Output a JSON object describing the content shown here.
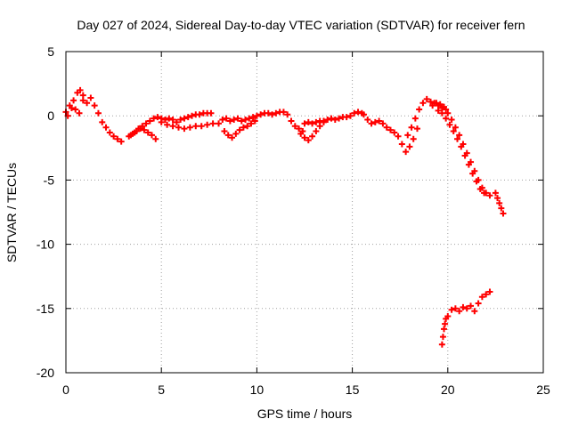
{
  "chart_data": {
    "type": "scatter",
    "title": "Day 027 of 2024, Sidereal Day-to-day VTEC variation (SDTVAR) for receiver fern",
    "xlabel": "GPS time / hours",
    "ylabel": "SDTVAR / TECUs",
    "xlim": [
      0,
      25
    ],
    "ylim": [
      -20,
      5
    ],
    "xticks": [
      0,
      5,
      10,
      15,
      20,
      25
    ],
    "xtick_labels": [
      "0",
      "5",
      "10",
      "15",
      "20",
      "25"
    ],
    "yticks": [
      5,
      0,
      -5,
      -10,
      -15,
      -20
    ],
    "ytick_labels": [
      "5",
      "0",
      "-5",
      "-10",
      "-15",
      "-20"
    ],
    "grid": true,
    "marker": "plus",
    "series": [
      {
        "name": "SDTVAR",
        "color": "#ff0000",
        "segments": [
          {
            "x": [
              0.0,
              0.2,
              0.4,
              0.6,
              0.75,
              0.9,
              1.1,
              1.3,
              1.5,
              1.7,
              1.9,
              2.1,
              2.3,
              2.5,
              2.7,
              2.9
            ],
            "y": [
              0.3,
              0.8,
              1.2,
              1.8,
              2.0,
              1.6,
              1.0,
              1.4,
              0.8,
              0.2,
              -0.5,
              -0.9,
              -1.3,
              -1.6,
              -1.8,
              -2.0
            ]
          },
          {
            "x": [
              0.1,
              0.3,
              0.5,
              0.7,
              0.9
            ],
            "y": [
              0.0,
              0.6,
              0.5,
              0.2,
              1.2
            ]
          },
          {
            "x": [
              3.3,
              3.5,
              3.7,
              3.9,
              4.1,
              4.3,
              4.5,
              4.7
            ],
            "y": [
              -1.6,
              -1.4,
              -1.2,
              -1.0,
              -1.1,
              -1.3,
              -1.5,
              -1.8
            ]
          },
          {
            "x": [
              3.4,
              3.6,
              3.8,
              4.0,
              4.2,
              4.4,
              4.6,
              4.8,
              5.0,
              5.2,
              5.4,
              5.6,
              5.8,
              6.0,
              6.2,
              6.4,
              6.6,
              6.8,
              7.0,
              7.2,
              7.4,
              7.6
            ],
            "y": [
              -1.5,
              -1.3,
              -1.0,
              -0.8,
              -0.6,
              -0.4,
              -0.2,
              -0.1,
              -0.2,
              -0.3,
              -0.2,
              -0.3,
              -0.5,
              -0.3,
              -0.2,
              -0.1,
              0.0,
              0.1,
              0.1,
              0.2,
              0.2,
              0.2
            ]
          },
          {
            "x": [
              5.0,
              5.3,
              5.6,
              5.9,
              6.2,
              6.5,
              6.8,
              7.1,
              7.4,
              7.7,
              8.0
            ],
            "y": [
              -0.5,
              -0.7,
              -0.8,
              -0.9,
              -1.0,
              -0.9,
              -0.8,
              -0.8,
              -0.7,
              -0.6,
              -0.6
            ]
          },
          {
            "x": [
              8.2,
              8.4,
              8.6,
              8.8,
              9.0,
              9.2,
              9.4,
              9.6,
              9.8,
              10.0
            ],
            "y": [
              -0.3,
              -0.2,
              -0.4,
              -0.3,
              -0.2,
              -0.4,
              -0.3,
              -0.2,
              -0.1,
              0.0
            ]
          },
          {
            "x": [
              8.3,
              8.5,
              8.7,
              8.9,
              9.1,
              9.3,
              9.5,
              9.7,
              9.9
            ],
            "y": [
              -1.2,
              -1.5,
              -1.7,
              -1.4,
              -1.1,
              -0.9,
              -0.8,
              -0.6,
              -0.4
            ]
          },
          {
            "x": [
              10.2,
              10.4,
              10.6,
              10.8,
              11.0,
              11.2,
              11.4,
              11.6,
              11.8,
              12.0,
              12.2,
              12.4
            ],
            "y": [
              0.1,
              0.2,
              0.2,
              0.1,
              0.2,
              0.3,
              0.3,
              0.1,
              -0.4,
              -0.8,
              -1.0,
              -1.2
            ]
          },
          {
            "x": [
              12.3,
              12.5,
              12.7,
              12.9,
              13.1,
              13.3,
              13.5
            ],
            "y": [
              -1.4,
              -1.7,
              -1.9,
              -1.6,
              -1.2,
              -0.8,
              -0.5
            ]
          },
          {
            "x": [
              12.5,
              12.7,
              12.9,
              13.1,
              13.3,
              13.5,
              13.7,
              13.9,
              14.1,
              14.3,
              14.5,
              14.7,
              14.9,
              15.1,
              15.3,
              15.5
            ],
            "y": [
              -0.6,
              -0.5,
              -0.6,
              -0.5,
              -0.4,
              -0.4,
              -0.3,
              -0.2,
              -0.3,
              -0.2,
              -0.1,
              -0.1,
              0.0,
              0.2,
              0.3,
              0.2
            ]
          },
          {
            "x": [
              15.6,
              15.8,
              16.0,
              16.2,
              16.4,
              16.6,
              16.8,
              17.0,
              17.2,
              17.4,
              17.6,
              17.8,
              18.0,
              18.2,
              18.4
            ],
            "y": [
              0.1,
              -0.3,
              -0.6,
              -0.5,
              -0.4,
              -0.6,
              -0.9,
              -1.1,
              -1.3,
              -1.6,
              -2.2,
              -2.8,
              -2.4,
              -1.8,
              -1.0
            ]
          },
          {
            "x": [
              17.9,
              18.1,
              18.3,
              18.5,
              18.7,
              18.9,
              19.1,
              19.3,
              19.5,
              19.7,
              19.9
            ],
            "y": [
              -1.5,
              -0.9,
              -0.2,
              0.5,
              1.0,
              1.3,
              1.1,
              1.0,
              0.8,
              0.6,
              0.5
            ]
          },
          {
            "x": [
              19.2,
              19.4,
              19.6,
              19.8,
              20.0,
              20.2,
              20.4,
              20.6,
              20.8,
              21.0,
              21.2,
              21.4,
              21.6,
              21.8,
              22.0,
              22.2
            ],
            "y": [
              0.8,
              1.0,
              0.9,
              0.7,
              0.2,
              -0.3,
              -0.9,
              -1.5,
              -2.2,
              -2.9,
              -3.6,
              -4.3,
              -5.0,
              -5.6,
              -6.0,
              -6.2
            ]
          },
          {
            "x": [
              19.5,
              19.7,
              19.9,
              20.1,
              20.3,
              20.5,
              20.7,
              20.9,
              21.1,
              21.3,
              21.5,
              21.7,
              21.9
            ],
            "y": [
              0.4,
              0.2,
              -0.2,
              -0.7,
              -1.2,
              -1.8,
              -2.4,
              -3.1,
              -3.8,
              -4.5,
              -5.1,
              -5.7,
              -6.0
            ]
          },
          {
            "x": [
              22.5,
              22.6,
              22.7,
              22.8,
              22.9
            ],
            "y": [
              -6.0,
              -6.4,
              -6.8,
              -7.2,
              -7.6
            ]
          },
          {
            "x": [
              19.7,
              19.75,
              19.8,
              19.85,
              19.9,
              20.0,
              20.2,
              20.4,
              20.6,
              20.8,
              21.0,
              21.2,
              21.4,
              21.6,
              21.8,
              22.0,
              22.2
            ],
            "y": [
              -17.8,
              -17.2,
              -16.6,
              -16.2,
              -15.8,
              -15.6,
              -15.1,
              -15.0,
              -15.2,
              -14.9,
              -15.0,
              -14.8,
              -15.2,
              -14.6,
              -14.1,
              -13.9,
              -13.7
            ]
          }
        ]
      }
    ]
  }
}
